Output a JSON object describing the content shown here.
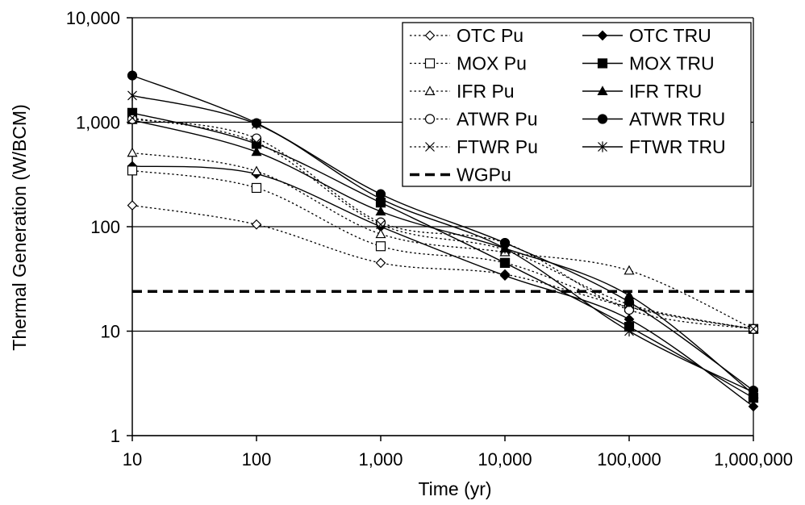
{
  "chart_data": {
    "type": "line",
    "title": "",
    "xlabel": "Time (yr)",
    "ylabel": "Thermal Generation (W/BCM)",
    "x_scale": "log",
    "y_scale": "log",
    "xlim": [
      10,
      1000000
    ],
    "ylim": [
      1,
      10000
    ],
    "grid": "horizontal major gridlines",
    "legend_position": "top-right",
    "x_tick_labels": [
      "10",
      "100",
      "1,000",
      "10,000",
      "100,000",
      "1,000,000"
    ],
    "x_tick_values": [
      10,
      100,
      1000,
      10000,
      100000,
      1000000
    ],
    "y_tick_labels": [
      "1",
      "10",
      "100",
      "1,000",
      "10,000"
    ],
    "y_tick_values": [
      1,
      10,
      100,
      1000,
      10000
    ],
    "x": [
      10,
      100,
      1000,
      10000,
      100000,
      1000000
    ],
    "series": [
      {
        "name": "OTC Pu",
        "marker": "diamond-open",
        "style": "dotted",
        "values": [
          160,
          105,
          45,
          35,
          17,
          10.5
        ]
      },
      {
        "name": "OTC TRU",
        "marker": "diamond-filled",
        "style": "solid",
        "values": [
          380,
          320,
          100,
          34,
          13,
          1.9
        ]
      },
      {
        "name": "MOX Pu",
        "marker": "square-open",
        "style": "dotted",
        "values": [
          345,
          235,
          65,
          45,
          17,
          10.5
        ]
      },
      {
        "name": "MOX TRU",
        "marker": "square-filled",
        "style": "solid",
        "values": [
          1230,
          620,
          170,
          45,
          11,
          2.3
        ]
      },
      {
        "name": "IFR Pu",
        "marker": "triangle-open",
        "style": "dotted",
        "values": [
          510,
          340,
          85,
          57,
          38,
          10.5
        ]
      },
      {
        "name": "IFR TRU",
        "marker": "triangle-filled",
        "style": "solid",
        "values": [
          1050,
          520,
          140,
          62,
          22,
          2.5
        ]
      },
      {
        "name": "ATWR Pu",
        "marker": "circle-open",
        "style": "dotted",
        "values": [
          1070,
          700,
          110,
          70,
          16,
          10.5
        ]
      },
      {
        "name": "ATWR TRU",
        "marker": "circle-filled",
        "style": "solid",
        "values": [
          2800,
          980,
          205,
          70,
          19,
          2.7
        ]
      },
      {
        "name": "FTWR Pu",
        "marker": "x",
        "style": "dotted",
        "values": [
          1100,
          640,
          105,
          60,
          18,
          10.5
        ]
      },
      {
        "name": "FTWR TRU",
        "marker": "asterisk",
        "style": "solid",
        "values": [
          1800,
          960,
          185,
          62,
          10,
          2.6
        ]
      },
      {
        "name": "WGPu",
        "marker": "none",
        "style": "dashed",
        "constant": 24
      }
    ]
  },
  "colors": {
    "line": "#000000",
    "grid": "#000000",
    "background": "#ffffff"
  }
}
